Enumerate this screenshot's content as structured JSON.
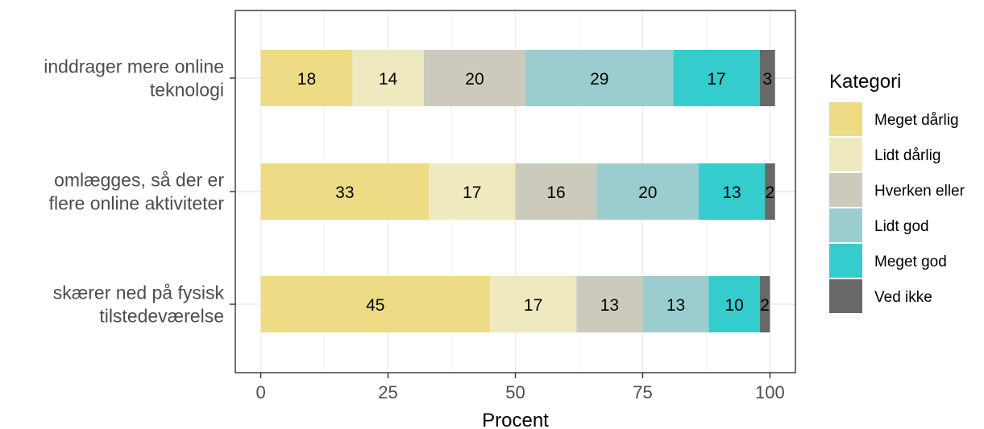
{
  "chart_data": {
    "type": "bar",
    "orientation": "horizontal",
    "stacked": true,
    "categories": [
      [
        "inddrager mere online",
        "teknologi"
      ],
      [
        "omlægges, så der er",
        "flere online aktiviteter"
      ],
      [
        "skærer ned på fysisk",
        "tilstedeværelse"
      ]
    ],
    "series": [
      {
        "name": "Meget dårlig",
        "color": "#EDDB85",
        "values": [
          18,
          33,
          45
        ]
      },
      {
        "name": "Lidt dårlig",
        "color": "#EFE9BF",
        "values": [
          14,
          17,
          17
        ]
      },
      {
        "name": "Hverken eller",
        "color": "#CBCABD",
        "values": [
          20,
          16,
          13
        ]
      },
      {
        "name": "Lidt god",
        "color": "#9BCDCE",
        "values": [
          29,
          20,
          13
        ]
      },
      {
        "name": "Meget god",
        "color": "#34CCCD",
        "values": [
          17,
          13,
          10
        ]
      },
      {
        "name": "Ved ikke",
        "color": "#686868",
        "values": [
          3,
          2,
          2
        ]
      }
    ],
    "xlabel": "Procent",
    "ylabel": "",
    "xlim": [
      -5,
      105
    ],
    "xticks": [
      0,
      25,
      50,
      75,
      100
    ],
    "grid": true,
    "legend": {
      "title": "Kategori",
      "placement": "right"
    }
  }
}
